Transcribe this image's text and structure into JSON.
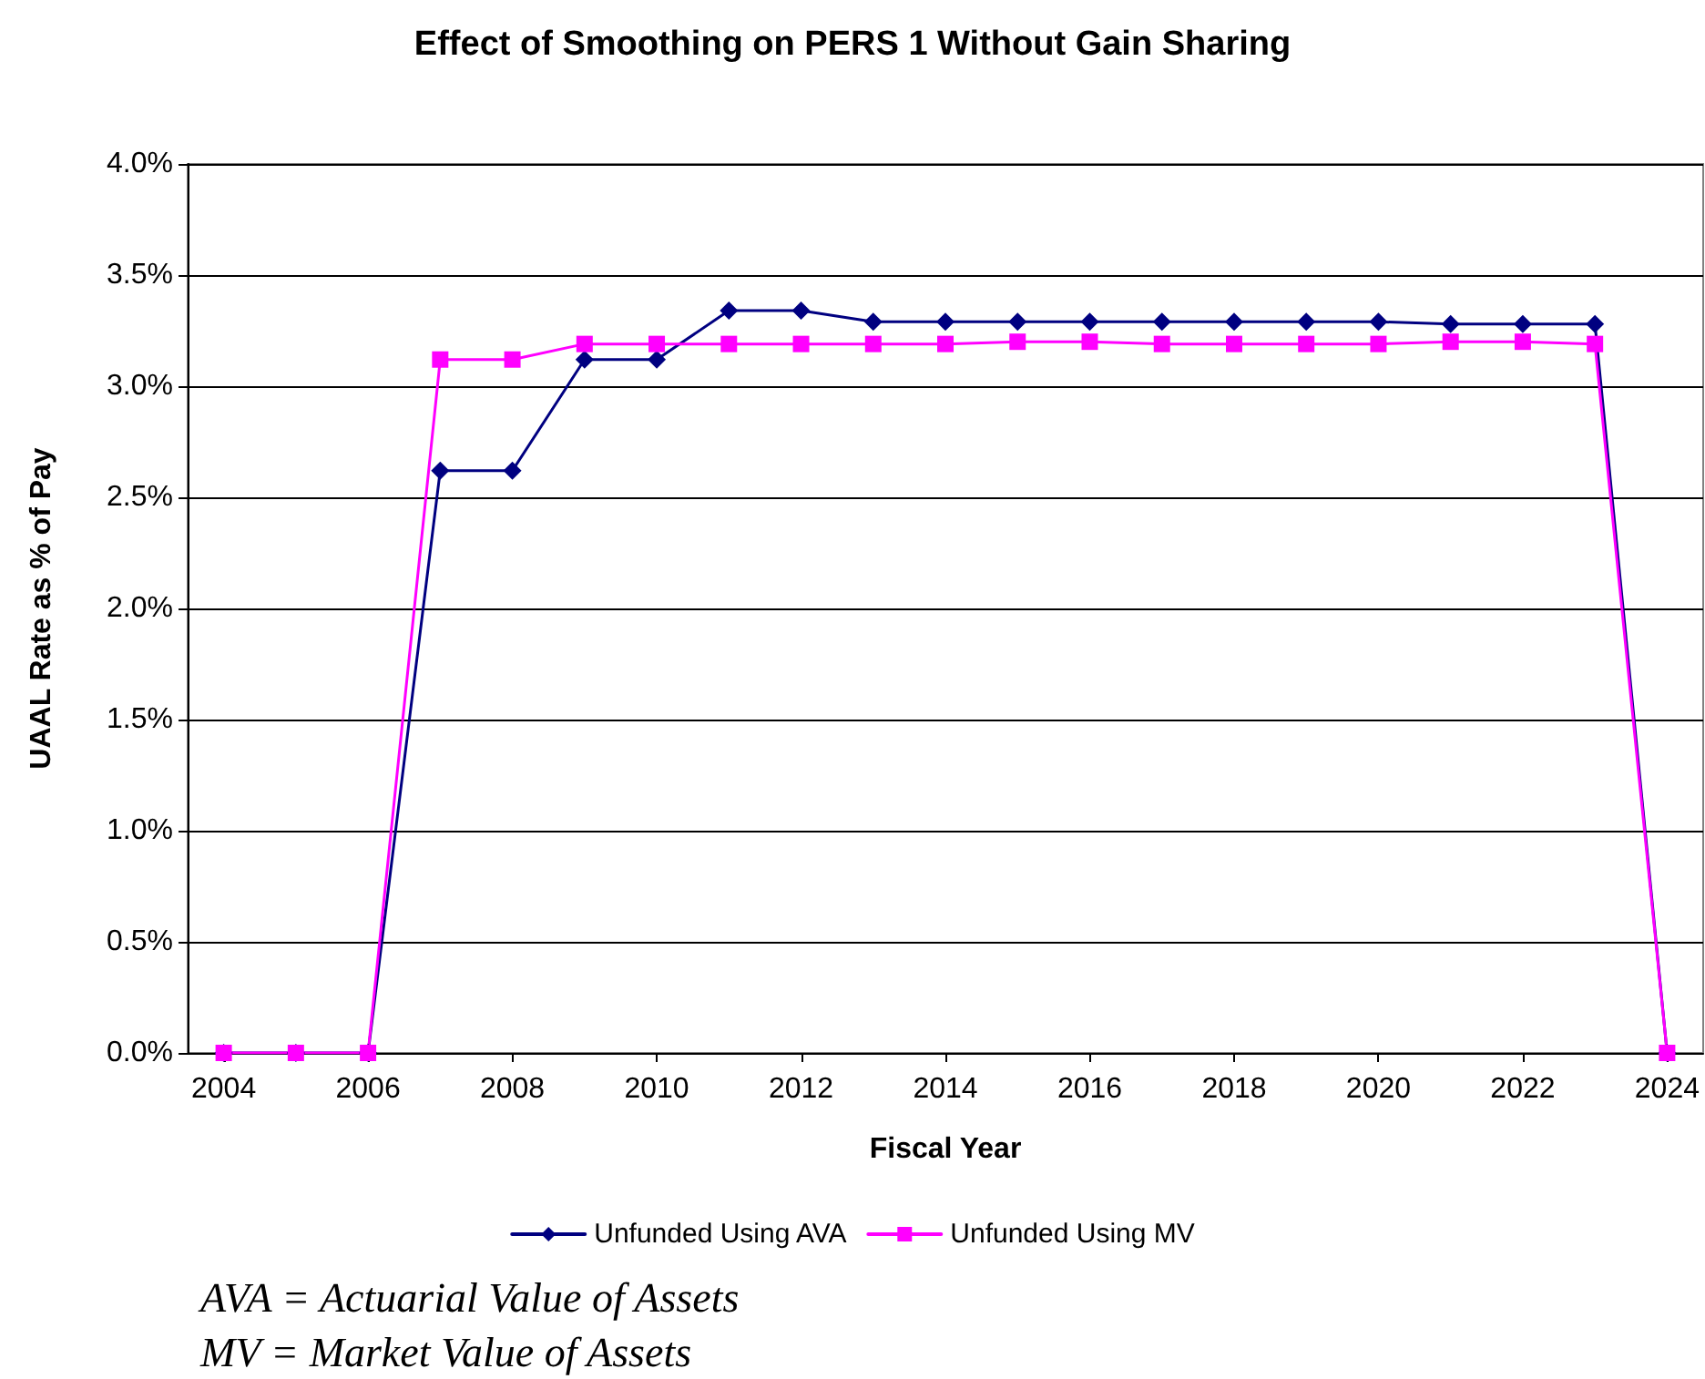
{
  "chart_data": {
    "type": "line",
    "title": "Effect of Smoothing on PERS 1 Without Gain Sharing",
    "xlabel": "Fiscal Year",
    "ylabel": "UAAL Rate as % of Pay",
    "x": [
      2004,
      2005,
      2006,
      2007,
      2008,
      2009,
      2010,
      2011,
      2012,
      2013,
      2014,
      2015,
      2016,
      2017,
      2018,
      2019,
      2020,
      2021,
      2022,
      2023,
      2024
    ],
    "series": [
      {
        "name": "Unfunded Using AVA",
        "color": "#000080",
        "marker": "diamond",
        "values": [
          0,
          0,
          0,
          2.62,
          2.62,
          3.12,
          3.12,
          3.34,
          3.34,
          3.29,
          3.29,
          3.29,
          3.29,
          3.29,
          3.29,
          3.29,
          3.29,
          3.28,
          3.28,
          3.28,
          0
        ]
      },
      {
        "name": "Unfunded Using MV",
        "color": "#ff00ff",
        "marker": "square",
        "values": [
          0,
          0,
          0,
          3.12,
          3.12,
          3.19,
          3.19,
          3.19,
          3.19,
          3.19,
          3.19,
          3.2,
          3.2,
          3.19,
          3.19,
          3.19,
          3.19,
          3.2,
          3.2,
          3.19,
          0
        ]
      }
    ],
    "xlim": [
      2003.5,
      2024.5
    ],
    "xticks": [
      2004,
      2006,
      2008,
      2010,
      2012,
      2014,
      2016,
      2018,
      2020,
      2022,
      2024
    ],
    "ylim": [
      0,
      4
    ],
    "yticks": [
      {
        "value": 0,
        "label": "0.0%"
      },
      {
        "value": 0.5,
        "label": "0.5%"
      },
      {
        "value": 1,
        "label": "1.0%"
      },
      {
        "value": 1.5,
        "label": "1.5%"
      },
      {
        "value": 2,
        "label": "2.0%"
      },
      {
        "value": 2.5,
        "label": "2.5%"
      },
      {
        "value": 3,
        "label": "3.0%"
      },
      {
        "value": 3.5,
        "label": "3.5%"
      },
      {
        "value": 4,
        "label": "4.0%"
      }
    ],
    "grid": "y",
    "legend": "bottom",
    "line_style": "solid",
    "annotations": [
      "AVA = Actuarial Value of Assets",
      "MV = Market Value of Assets"
    ]
  }
}
